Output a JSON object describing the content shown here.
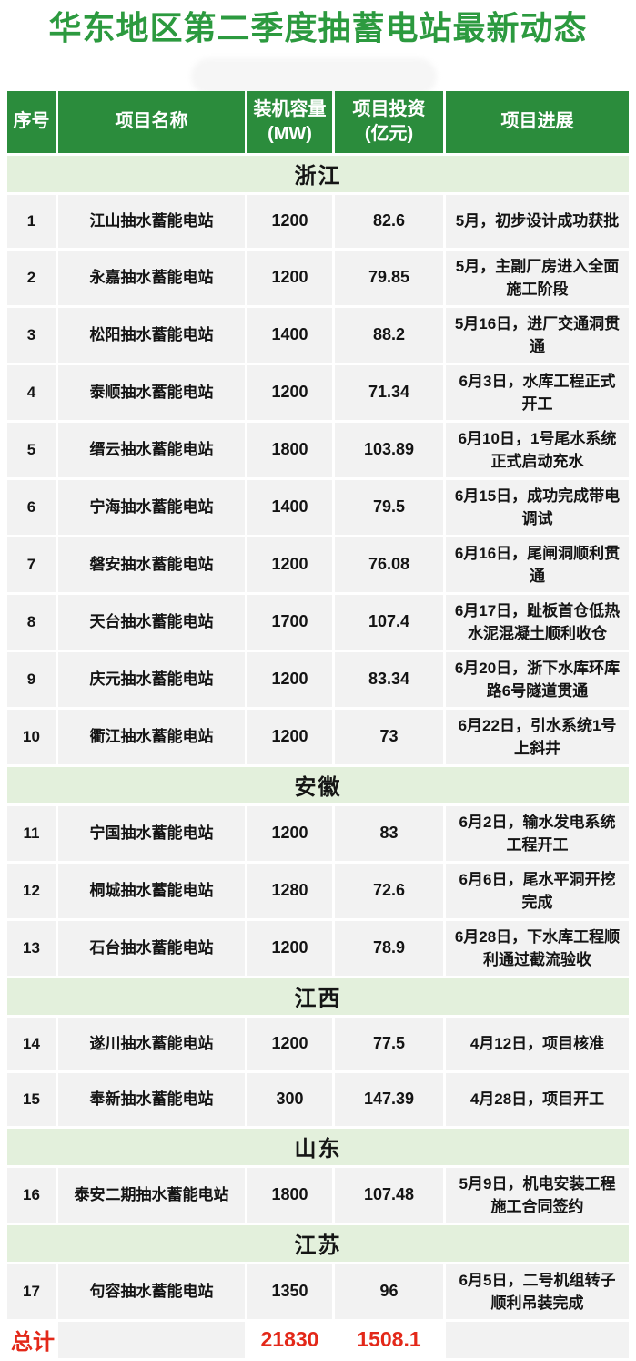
{
  "title": "华东地区第二季度抽蓄电站最新动态",
  "colors": {
    "title_green": "#2c9a3f",
    "header_green": "#2b8c3c",
    "band_green": "#e3f0dc",
    "row_gray": "#f2f2f2",
    "total_red": "#e32819",
    "header_text": "#ffffff"
  },
  "chart_data": {
    "type": "table",
    "title": "华东地区第二季度抽蓄电站最新动态",
    "columns": [
      {
        "key": "no",
        "lines": [
          "序号"
        ]
      },
      {
        "key": "name",
        "lines": [
          "项目名称"
        ]
      },
      {
        "key": "capacity_mw",
        "lines": [
          "装机容量",
          "(MW)"
        ]
      },
      {
        "key": "investment_yi",
        "lines": [
          "项目投资",
          "(亿元)"
        ]
      },
      {
        "key": "progress",
        "lines": [
          "项目进展"
        ]
      }
    ],
    "sections": [
      {
        "region": "浙江",
        "rows": [
          {
            "no": "1",
            "name": "江山抽水蓄能电站",
            "capacity_mw": "1200",
            "investment_yi": "82.6",
            "progress": "5月，初步设计成功获批"
          },
          {
            "no": "2",
            "name": "永嘉抽水蓄能电站",
            "capacity_mw": "1200",
            "investment_yi": "79.85",
            "progress": "5月，主副厂房进入全面施工阶段"
          },
          {
            "no": "3",
            "name": "松阳抽水蓄能电站",
            "capacity_mw": "1400",
            "investment_yi": "88.2",
            "progress": "5月16日，进厂交通洞贯通"
          },
          {
            "no": "4",
            "name": "泰顺抽水蓄能电站",
            "capacity_mw": "1200",
            "investment_yi": "71.34",
            "progress": "6月3日，水库工程正式开工"
          },
          {
            "no": "5",
            "name": "缙云抽水蓄能电站",
            "capacity_mw": "1800",
            "investment_yi": "103.89",
            "progress": "6月10日，1号尾水系统正式启动充水"
          },
          {
            "no": "6",
            "name": "宁海抽水蓄能电站",
            "capacity_mw": "1400",
            "investment_yi": "79.5",
            "progress": "6月15日，成功完成带电调试"
          },
          {
            "no": "7",
            "name": "磐安抽水蓄能电站",
            "capacity_mw": "1200",
            "investment_yi": "76.08",
            "progress": "6月16日，尾闸洞顺利贯通"
          },
          {
            "no": "8",
            "name": "天台抽水蓄能电站",
            "capacity_mw": "1700",
            "investment_yi": "107.4",
            "progress": "6月17日，趾板首仓低热水泥混凝土顺利收仓"
          },
          {
            "no": "9",
            "name": "庆元抽水蓄能电站",
            "capacity_mw": "1200",
            "investment_yi": "83.34",
            "progress": "6月20日，浙下水库环库路6号隧道贯通"
          },
          {
            "no": "10",
            "name": "衢江抽水蓄能电站",
            "capacity_mw": "1200",
            "investment_yi": "73",
            "progress": "6月22日，引水系统1号上斜井"
          }
        ]
      },
      {
        "region": "安徽",
        "rows": [
          {
            "no": "11",
            "name": "宁国抽水蓄能电站",
            "capacity_mw": "1200",
            "investment_yi": "83",
            "progress": "6月2日，输水发电系统工程开工"
          },
          {
            "no": "12",
            "name": "桐城抽水蓄能电站",
            "capacity_mw": "1280",
            "investment_yi": "72.6",
            "progress": "6月6日，尾水平洞开挖完成"
          },
          {
            "no": "13",
            "name": "石台抽水蓄能电站",
            "capacity_mw": "1200",
            "investment_yi": "78.9",
            "progress": "6月28日，下水库工程顺利通过截流验收"
          }
        ]
      },
      {
        "region": "江西",
        "rows": [
          {
            "no": "14",
            "name": "遂川抽水蓄能电站",
            "capacity_mw": "1200",
            "investment_yi": "77.5",
            "progress": "4月12日，项目核准"
          },
          {
            "no": "15",
            "name": "奉新抽水蓄能电站",
            "capacity_mw": "300",
            "investment_yi": "147.39",
            "progress": "4月28日，项目开工"
          }
        ]
      },
      {
        "region": "山东",
        "rows": [
          {
            "no": "16",
            "name": "泰安二期抽水蓄能电站",
            "capacity_mw": "1800",
            "investment_yi": "107.48",
            "progress": "5月9日，机电安装工程施工合同签约"
          }
        ]
      },
      {
        "region": "江苏",
        "rows": [
          {
            "no": "17",
            "name": "句容抽水蓄能电站",
            "capacity_mw": "1350",
            "investment_yi": "96",
            "progress": "6月5日，二号机组转子顺利吊装完成"
          }
        ]
      }
    ],
    "total": {
      "label": "总计",
      "capacity_mw_total": "21830",
      "investment_yi_total": "1508.1"
    }
  }
}
